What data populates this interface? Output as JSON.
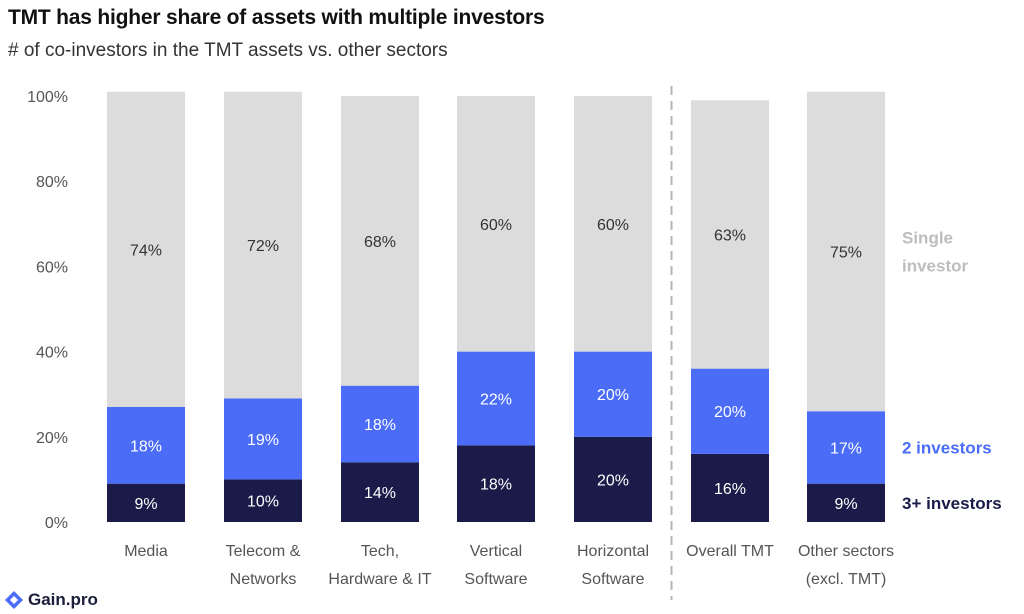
{
  "chart_data": {
    "type": "bar",
    "stacked": true,
    "orientation": "vertical",
    "title": "TMT has higher share of assets with multiple investors",
    "subtitle": "# of co-investors in the TMT assets vs. other sectors",
    "y_ticks": [
      "0%",
      "20%",
      "40%",
      "60%",
      "80%",
      "100%"
    ],
    "ylim": [
      0,
      100
    ],
    "grid": false,
    "separator_after_index": 4,
    "categories": [
      [
        "Media"
      ],
      [
        "Telecom &",
        "Networks"
      ],
      [
        "Tech,",
        "Hardware & IT"
      ],
      [
        "Vertical",
        "Software"
      ],
      [
        "Horizontal",
        "Software"
      ],
      [
        "Overall TMT"
      ],
      [
        "Other sectors",
        "(excl. TMT)"
      ]
    ],
    "series": [
      {
        "name": "3+ investors",
        "color": "#1b1b4a",
        "label_color": "#ffffff",
        "values": [
          9,
          10,
          14,
          18,
          20,
          16,
          9
        ],
        "labels": [
          "9%",
          "10%",
          "14%",
          "18%",
          "20%",
          "16%",
          "9%"
        ]
      },
      {
        "name": "2 investors",
        "color": "#4a6cf7",
        "label_color": "#ffffff",
        "values": [
          18,
          19,
          18,
          22,
          20,
          20,
          17
        ],
        "labels": [
          "18%",
          "19%",
          "18%",
          "22%",
          "20%",
          "20%",
          "17%"
        ]
      },
      {
        "name": "Single investor",
        "legend_lines": [
          "Single",
          "investor"
        ],
        "color": "#dcdcdc",
        "label_color": "#333333",
        "values": [
          74,
          72,
          68,
          60,
          60,
          63,
          75
        ],
        "labels": [
          "74%",
          "72%",
          "68%",
          "60%",
          "60%",
          "63%",
          "75%"
        ]
      }
    ],
    "legend_placement": "right",
    "legend_colors": [
      "#1b1b4a",
      "#4a6cf7",
      "#bdbdbd"
    ]
  },
  "branding": {
    "logo_text": "Gain.pro",
    "logo_icon": "gain-logo-icon"
  }
}
